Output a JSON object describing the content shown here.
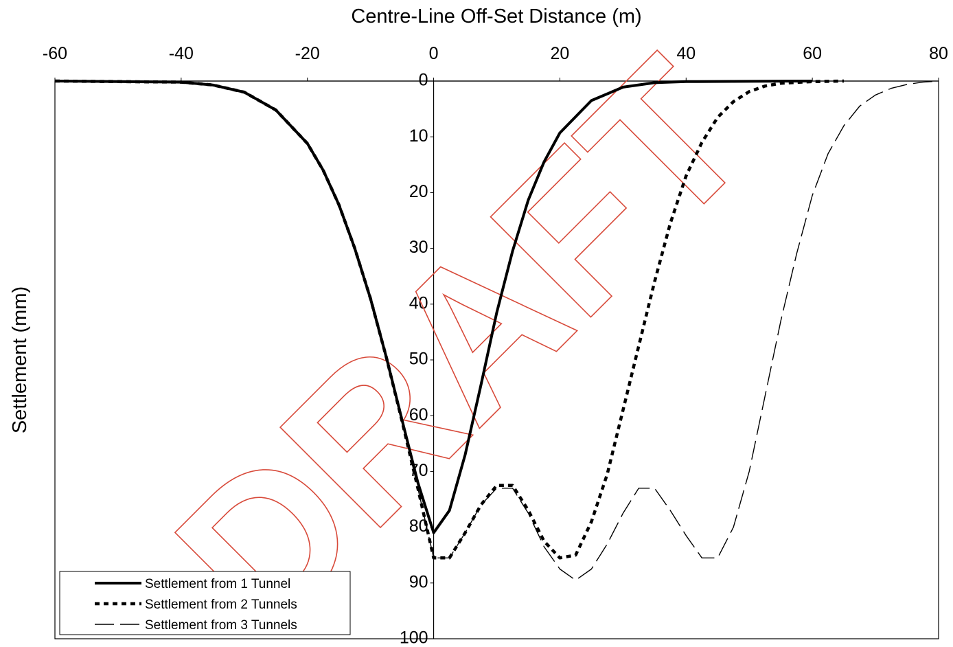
{
  "watermark": "DRAFT",
  "chart_data": {
    "type": "line",
    "xlabel": "Centre-Line Off-Set Distance (m)",
    "ylabel": "Settlement (mm)",
    "xlim": [
      -60,
      80
    ],
    "ylim": [
      0,
      100
    ],
    "y_inverted": true,
    "x_axis_position": "top",
    "x_ticks": [
      -60,
      -40,
      -20,
      0,
      20,
      40,
      60,
      80
    ],
    "y_ticks": [
      0,
      10,
      20,
      30,
      40,
      50,
      60,
      70,
      80,
      90,
      100
    ],
    "grid": false,
    "legend_position": "bottom-left",
    "series": [
      {
        "name": "Settlement from 1 Tunnel",
        "style": "solid-thick",
        "color": "#000000",
        "x": [
          -60,
          -40,
          -35,
          -30,
          -25,
          -20,
          -17.5,
          -15,
          -12.5,
          -10,
          -7.5,
          -5,
          -2.5,
          0,
          2.5,
          5,
          7.5,
          10,
          12.5,
          15,
          17.5,
          20,
          25,
          30,
          35,
          40,
          60
        ],
        "y": [
          0,
          0.2,
          0.7,
          2,
          5.2,
          11.2,
          16,
          22.2,
          30,
          39,
          49.5,
          60.8,
          72,
          81,
          77,
          67,
          54.5,
          41.5,
          30.5,
          21.3,
          14.5,
          9.3,
          3.5,
          1.1,
          0.3,
          0.1,
          0
        ]
      },
      {
        "name": "Settlement from 2 Tunnels",
        "style": "dotted-thick",
        "color": "#000000",
        "x": [
          -60,
          -40,
          -35,
          -30,
          -25,
          -20,
          -17.5,
          -15,
          -12.5,
          -10,
          -7.5,
          -5,
          -2.5,
          0,
          2.5,
          5,
          7.5,
          10,
          12.5,
          15,
          17.5,
          20,
          22.5,
          25,
          27.5,
          30,
          32.5,
          35,
          37.5,
          40,
          42.5,
          45,
          47.5,
          50,
          52.5,
          55,
          60,
          65
        ],
        "y": [
          0,
          0.2,
          0.7,
          2,
          5.2,
          11.2,
          16,
          22.2,
          30,
          39,
          49.5,
          61,
          73,
          85.5,
          85.5,
          81,
          76,
          72.5,
          72.5,
          77,
          82.5,
          85.5,
          85,
          79,
          70.5,
          59,
          47.5,
          36,
          25.5,
          17,
          11,
          6.5,
          3.7,
          1.9,
          0.9,
          0.4,
          0.1,
          0
        ]
      },
      {
        "name": "Settlement from 3 Tunnels",
        "style": "dashed-thin",
        "color": "#000000",
        "x": [
          -60,
          -40,
          -35,
          -30,
          -25,
          -20,
          -17.5,
          -15,
          -12.5,
          -10,
          -7.5,
          -5,
          -2.5,
          0,
          2.5,
          5,
          7.5,
          10,
          12.5,
          15,
          17.5,
          20,
          22.5,
          25,
          27.5,
          30,
          32.5,
          35,
          37.5,
          40,
          42.5,
          45,
          47.5,
          50,
          52.5,
          55,
          57.5,
          60,
          62.5,
          65,
          67.5,
          70,
          72.5,
          75,
          77.5,
          80
        ],
        "y": [
          0,
          0.2,
          0.7,
          2,
          5.2,
          11.2,
          16,
          22.2,
          30,
          39,
          49.5,
          61,
          73,
          85.5,
          85.5,
          81,
          76,
          73,
          73,
          77.5,
          83.5,
          87.5,
          89.5,
          87.5,
          83,
          77.5,
          73,
          73,
          77,
          81.5,
          85.5,
          85.5,
          80,
          70,
          56.5,
          43,
          31,
          20.5,
          13,
          8,
          4.5,
          2.5,
          1.3,
          0.6,
          0.2,
          0
        ]
      }
    ]
  }
}
